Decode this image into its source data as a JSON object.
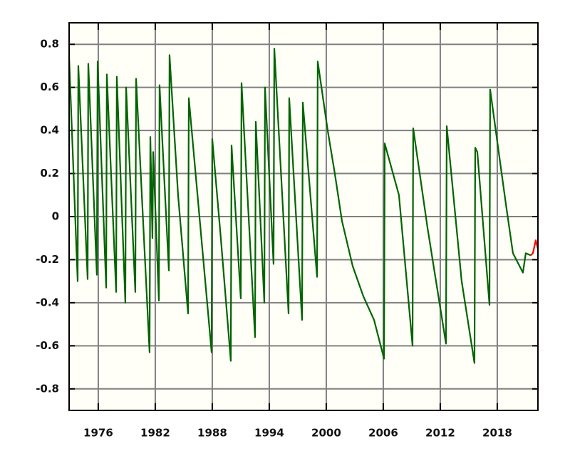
{
  "chart_data": {
    "type": "line",
    "xlim": [
      1972.93,
      2022.28
    ],
    "ylim": [
      -0.9,
      0.9
    ],
    "xticks": [
      1976,
      1982,
      1988,
      1994,
      2000,
      2006,
      2012,
      2018
    ],
    "yticks": [
      -0.8,
      -0.6,
      -0.4,
      -0.2,
      0,
      0.2,
      0.4,
      0.6,
      0.8
    ],
    "grid": true,
    "series": [
      {
        "color": "#006400",
        "x": [
          1972.93,
          1973.83,
          1973.9,
          1974.88,
          1974.95,
          1975.85,
          1975.93,
          1976.83,
          1976.9,
          1977.88,
          1977.95,
          1978.85,
          1978.93,
          1979.9,
          1979.98,
          1981.4,
          1981.48,
          1981.7,
          1981.78,
          1982.38,
          1982.45,
          1983.43,
          1983.5,
          1984.4,
          1985.45,
          1985.53,
          1986.65,
          1987.93,
          1988.0,
          1988.9,
          1989.95,
          1990.03,
          1991.0,
          1991.08,
          1992.5,
          1992.58,
          1993.48,
          1993.55,
          1994.45,
          1994.53,
          1996.03,
          1996.1,
          1997.45,
          1997.53,
          1999.03,
          1999.1,
          2000.15,
          2000.9,
          2001.65,
          2002.78,
          2003.9,
          2005.03,
          2006.08,
          2006.15,
          2007.65,
          2009.08,
          2009.15,
          2010.65,
          2012.6,
          2012.68,
          2014.25,
          2015.6,
          2015.68,
          2015.9,
          2017.18,
          2017.25,
          2018.15,
          2018.9,
          2019.65,
          2020.7,
          2021.0,
          2021.53
        ],
        "values": [
          0.74,
          -0.3,
          0.7,
          -0.29,
          0.71,
          -0.27,
          0.72,
          -0.33,
          0.66,
          -0.35,
          0.65,
          -0.4,
          0.6,
          -0.35,
          0.64,
          -0.63,
          0.37,
          -0.1,
          0.3,
          -0.39,
          0.61,
          -0.25,
          0.75,
          0.1,
          -0.45,
          0.55,
          0.0,
          -0.63,
          0.36,
          -0.1,
          -0.67,
          0.33,
          -0.38,
          0.62,
          -0.56,
          0.44,
          -0.4,
          0.6,
          -0.22,
          0.78,
          -0.45,
          0.55,
          -0.48,
          0.53,
          -0.28,
          0.72,
          0.4,
          0.2,
          -0.02,
          -0.23,
          -0.37,
          -0.48,
          -0.66,
          0.34,
          0.1,
          -0.6,
          0.41,
          -0.05,
          -0.59,
          0.42,
          -0.3,
          -0.68,
          0.32,
          0.3,
          -0.41,
          0.59,
          0.3,
          0.06,
          -0.17,
          -0.26,
          -0.17,
          -0.18
        ]
      },
      {
        "color": "#ff0000",
        "x": [
          2021.53,
          2021.75,
          2022.05,
          2022.28
        ],
        "values": [
          -0.18,
          -0.17,
          -0.11,
          -0.15
        ]
      }
    ]
  }
}
